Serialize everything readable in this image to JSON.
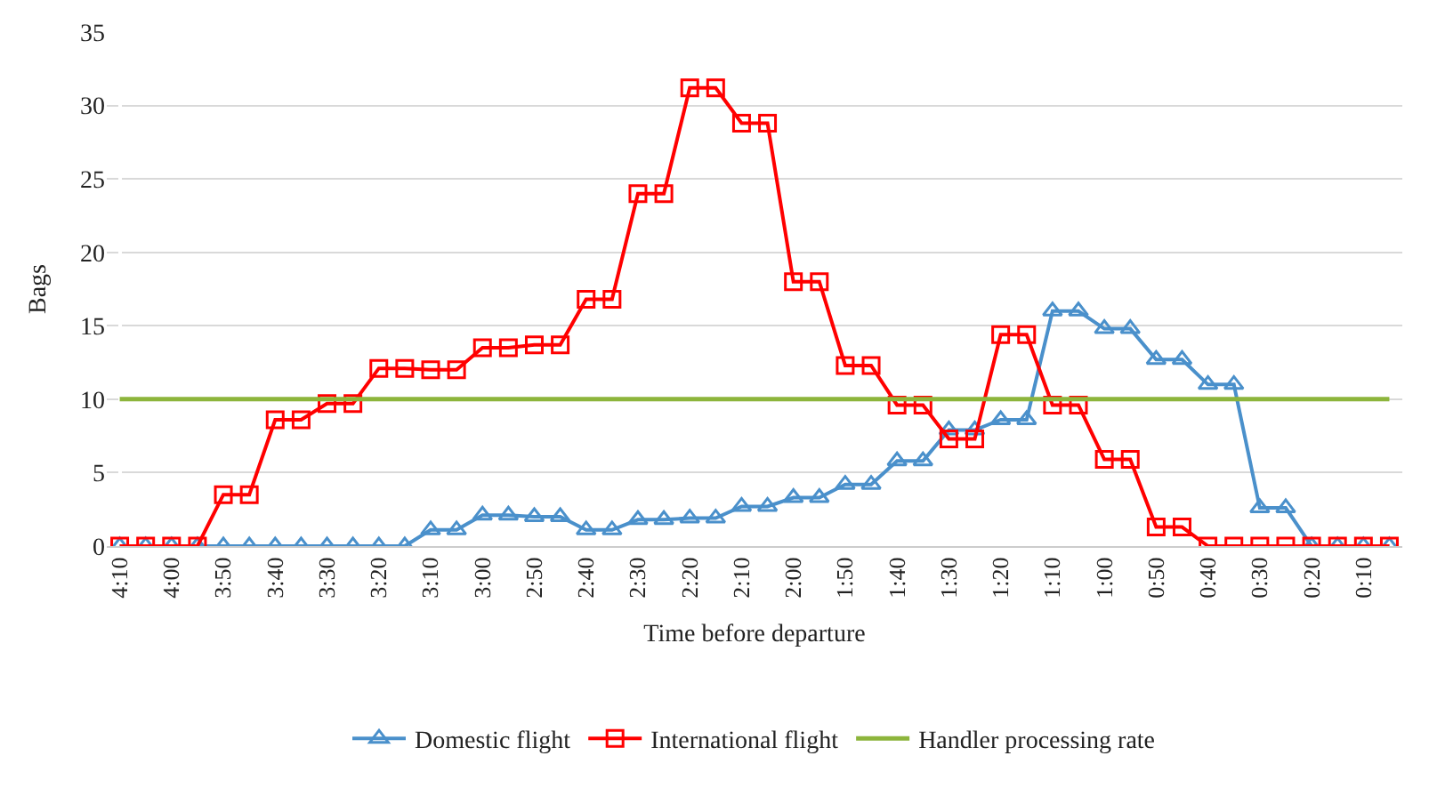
{
  "chart_data": {
    "type": "line",
    "xlabel": "Time before departure",
    "ylabel": "Bags",
    "categories": [
      "4:10",
      null,
      "4:00",
      null,
      "3:50",
      null,
      "3:40",
      null,
      "3:30",
      null,
      "3:20",
      null,
      "3:10",
      null,
      "3:00",
      null,
      "2:50",
      null,
      "2:40",
      null,
      "2:30",
      null,
      "2:20",
      null,
      "2:10",
      null,
      "2:00",
      null,
      "1:50",
      null,
      "1:40",
      null,
      "1:30",
      null,
      "1:20",
      null,
      "1:10",
      null,
      "1:00",
      null,
      "0:50",
      null,
      "0:40",
      null,
      "0:30",
      null,
      "0:20",
      null,
      "0:10",
      null
    ],
    "series": [
      {
        "name": "Domestic flight",
        "color": "#4a90cb",
        "marker": "triangle",
        "values": [
          0,
          0,
          0,
          0,
          0,
          0,
          0,
          0,
          0,
          0,
          0,
          0,
          1.1,
          1.1,
          2.1,
          2.1,
          2.0,
          2.0,
          1.1,
          1.1,
          1.8,
          1.8,
          1.9,
          1.9,
          2.7,
          2.7,
          3.3,
          3.3,
          4.2,
          4.2,
          5.8,
          5.8,
          7.9,
          7.9,
          8.6,
          8.6,
          16.0,
          16.0,
          14.8,
          14.8,
          12.7,
          12.7,
          11.0,
          11.0,
          2.6,
          2.6,
          0,
          0,
          0,
          0
        ]
      },
      {
        "name": "International flight",
        "color": "#ff0000",
        "marker": "square",
        "values": [
          0,
          0,
          0,
          0,
          3.5,
          3.5,
          8.6,
          8.6,
          9.7,
          9.7,
          12.1,
          12.1,
          12.0,
          12.0,
          13.5,
          13.5,
          13.7,
          13.7,
          16.8,
          16.8,
          24.0,
          24.0,
          31.2,
          31.2,
          28.8,
          28.8,
          18.0,
          18.0,
          12.3,
          12.3,
          9.6,
          9.6,
          7.3,
          7.3,
          14.4,
          14.4,
          9.6,
          9.6,
          5.9,
          5.9,
          1.3,
          1.3,
          0,
          0,
          0,
          0,
          0,
          0,
          0,
          0
        ]
      },
      {
        "name": "Handler processing rate",
        "color": "#8db53c",
        "marker": "none",
        "values": [
          10,
          10,
          10,
          10,
          10,
          10,
          10,
          10,
          10,
          10,
          10,
          10,
          10,
          10,
          10,
          10,
          10,
          10,
          10,
          10,
          10,
          10,
          10,
          10,
          10,
          10,
          10,
          10,
          10,
          10,
          10,
          10,
          10,
          10,
          10,
          10,
          10,
          10,
          10,
          10,
          10,
          10,
          10,
          10,
          10,
          10,
          10,
          10,
          10,
          10
        ]
      }
    ],
    "ylim": [
      0,
      35
    ],
    "yticks": [
      0,
      5,
      10,
      15,
      20,
      25,
      30,
      35
    ],
    "grid": "y",
    "legend": "bottom",
    "line_style": "solid"
  }
}
